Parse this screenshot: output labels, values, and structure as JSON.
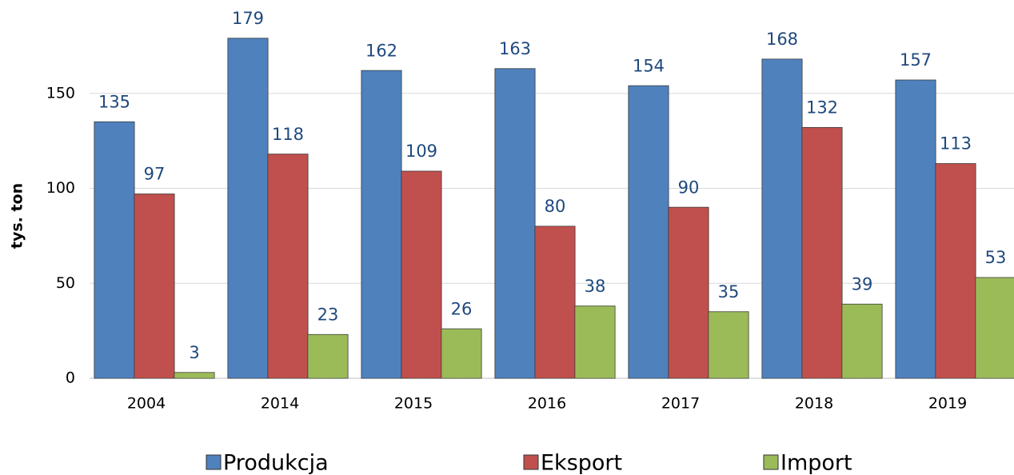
{
  "chart_data": {
    "type": "bar",
    "y_label": "tys. ton",
    "categories": [
      "2004",
      "2014",
      "2015",
      "2016",
      "2017",
      "2018",
      "2019"
    ],
    "series": [
      {
        "name": "Produkcja",
        "color": "#4f81bd",
        "values": [
          135,
          179,
          162,
          163,
          154,
          168,
          157
        ]
      },
      {
        "name": "Eksport",
        "color": "#c0504d",
        "values": [
          97,
          118,
          109,
          80,
          90,
          132,
          113
        ]
      },
      {
        "name": "Import",
        "color": "#9bbb59",
        "values": [
          3,
          23,
          26,
          38,
          35,
          39,
          53
        ]
      }
    ],
    "ylim": [
      0,
      200
    ],
    "yticks": [
      0,
      50,
      100,
      150
    ],
    "grid": true,
    "legend": "bottom"
  }
}
